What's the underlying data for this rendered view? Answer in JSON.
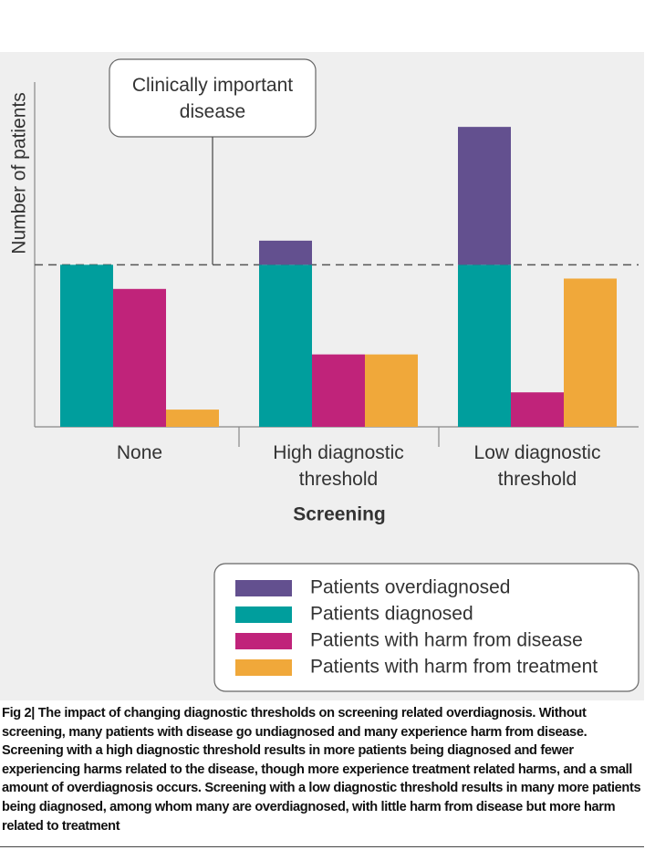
{
  "chart_data": {
    "type": "bar",
    "y_label": "Number of patients",
    "x_label": "Screening",
    "annotation": "Clinically important disease",
    "reference_line": 47,
    "categories": [
      "None",
      "High diagnostic threshold",
      "Low diagnostic threshold"
    ],
    "series": [
      {
        "name": "Patients overdiagnosed",
        "color": "#63508f",
        "values": [
          null,
          7,
          40
        ]
      },
      {
        "name": "Patients diagnosed",
        "color": "#009e9d",
        "values": [
          47,
          47,
          47
        ]
      },
      {
        "name": "Patients with harm from disease",
        "color": "#c0237a",
        "values": [
          40,
          21,
          10
        ]
      },
      {
        "name": "Patients with harm from treatment",
        "color": "#f0a83a",
        "values": [
          5,
          21,
          43
        ]
      }
    ],
    "ylim": [
      0,
      100
    ]
  },
  "caption": "Fig 2| The impact of changing diagnostic thresholds on screening related overdiagnosis. Without screening, many patients with disease go undiagnosed and many experience harm from disease. Screening with a high diagnostic threshold results in more patients being diagnosed and fewer experiencing harms related to the disease, though more experience treatment related harms, and a small amount of overdiagnosis occurs. Screening with a low diagnostic threshold results in many more patients being diagnosed, among whom many are overdiagnosed, with little harm from disease but more harm related to treatment"
}
